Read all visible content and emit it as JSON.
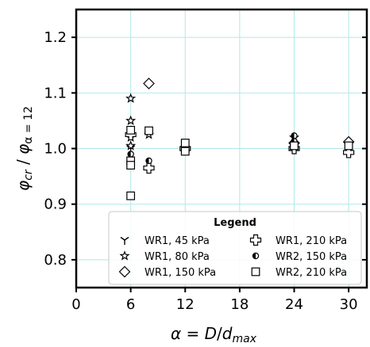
{
  "chart_data": {
    "type": "scatter",
    "xlabel": "α = D/d_max",
    "ylabel": "φcr / φα = 12",
    "xlim": [
      0,
      32
    ],
    "ylim": [
      0.75,
      1.25
    ],
    "xticks": [
      0,
      6,
      12,
      18,
      24,
      30
    ],
    "yticks": [
      0.8,
      0.9,
      1.0,
      1.1,
      1.2
    ],
    "x_tick_labels": [
      "0",
      "6",
      "12",
      "18",
      "24",
      "30"
    ],
    "y_tick_labels": [
      "0.8",
      "0.9",
      "1.0",
      "1.1",
      "1.2"
    ],
    "grid": true,
    "grid_color": "#b2e8e8",
    "legend": {
      "title": "Legend",
      "placement": "lower-right",
      "ncol": 2
    },
    "series": [
      {
        "name": "WR1, 45 kPa",
        "marker": "tri_down",
        "x": [
          6,
          6
        ],
        "y": [
          1.03,
          1.0
        ]
      },
      {
        "name": "WR1, 80 kPa",
        "marker": "star",
        "x": [
          6,
          6,
          6,
          6,
          8,
          12,
          24
        ],
        "y": [
          1.09,
          1.05,
          1.02,
          1.005,
          1.025,
          1.0,
          1.02
        ]
      },
      {
        "name": "WR1, 150 kPa",
        "marker": "diamond",
        "x": [
          8,
          24,
          30
        ],
        "y": [
          1.117,
          1.01,
          1.012
        ]
      },
      {
        "name": "WR1, 210 kPa",
        "marker": "plus_thick",
        "x": [
          6,
          8,
          12,
          24,
          30
        ],
        "y": [
          1.025,
          0.965,
          1.0,
          1.0,
          0.993
        ]
      },
      {
        "name": "WR2, 150 kPa",
        "marker": "half_circle",
        "x": [
          6,
          8,
          12,
          24,
          24
        ],
        "y": [
          0.99,
          0.978,
          1.0,
          1.023,
          1.013
        ]
      },
      {
        "name": "WR2, 210 kPa",
        "marker": "square",
        "x": [
          6,
          6,
          6,
          6,
          8,
          12,
          12,
          24,
          30
        ],
        "y": [
          1.033,
          0.978,
          0.97,
          0.915,
          1.032,
          1.01,
          0.995,
          1.005,
          1.005
        ]
      }
    ]
  }
}
